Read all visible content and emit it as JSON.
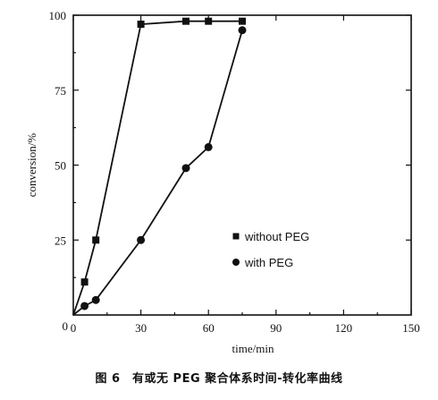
{
  "caption": "图 6　有或无 PEG 聚合体系时间-转化率曲线",
  "chart_data": {
    "type": "line",
    "xlabel": "time/min",
    "ylabel": "conversion/%",
    "xlim": [
      0,
      150
    ],
    "ylim": [
      0,
      100
    ],
    "xticks": [
      0,
      30,
      60,
      90,
      120,
      150
    ],
    "yticks": [
      25,
      50,
      75,
      100
    ],
    "yzero_label": "0",
    "grid": false,
    "legend_position": "center-right",
    "series": [
      {
        "name": "without PEG",
        "marker": "square",
        "x": [
          0,
          5,
          10,
          30,
          50,
          60,
          75
        ],
        "y": [
          0,
          11,
          25,
          97,
          98,
          98,
          98
        ]
      },
      {
        "name": "with PEG",
        "marker": "circle",
        "x": [
          0,
          5,
          10,
          30,
          50,
          60,
          75
        ],
        "y": [
          0,
          3,
          5,
          25,
          49,
          56,
          95
        ]
      }
    ]
  }
}
